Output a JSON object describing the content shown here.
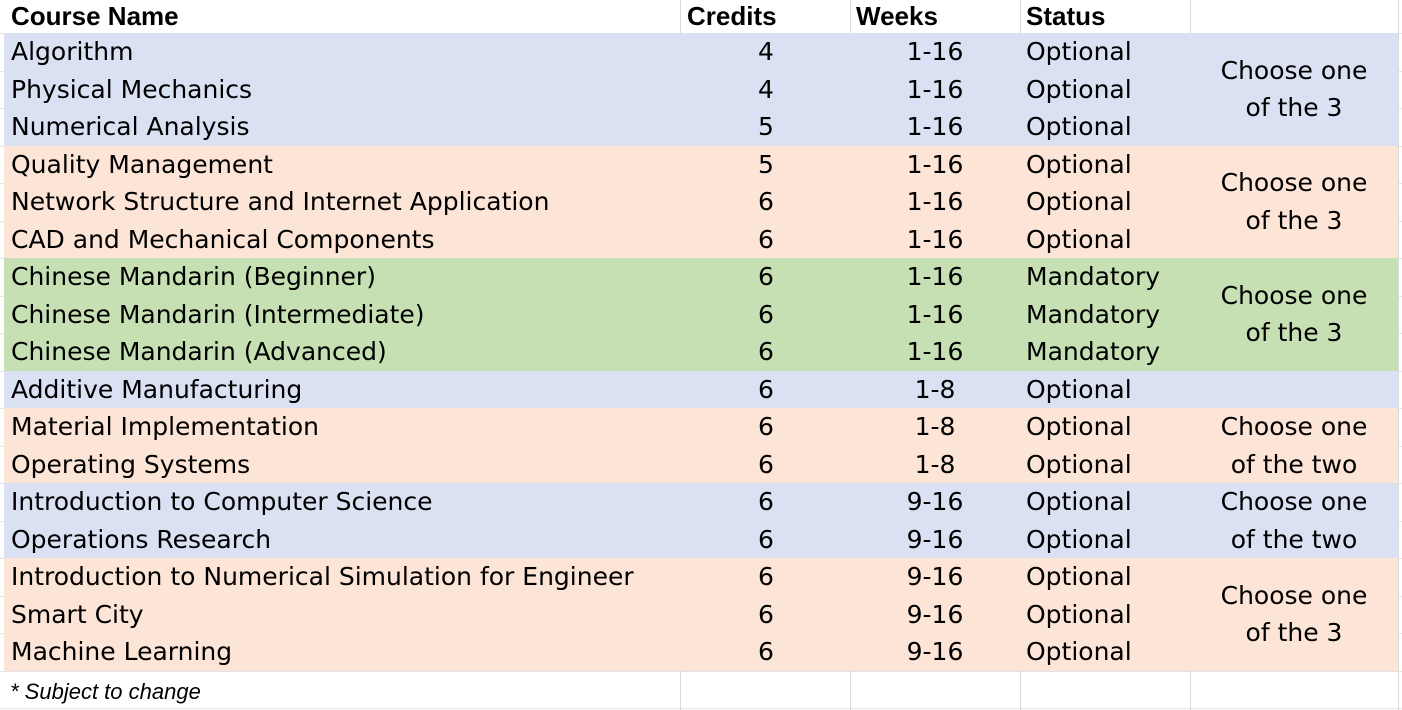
{
  "header": {
    "course_name": "Course Name",
    "credits": "Credits",
    "weeks": "Weeks",
    "status": "Status",
    "notes": ""
  },
  "colors": {
    "blue": "#d9e1f2",
    "orange": "#fce4d6",
    "green": "#c6e0b4"
  },
  "groups": [
    {
      "color": "blue",
      "note": [
        "Choose one",
        "of the 3"
      ],
      "rows": [
        {
          "name": "Algorithm",
          "credits": "4",
          "weeks": "1-16",
          "status": "Optional"
        },
        {
          "name": "Physical Mechanics",
          "credits": "4",
          "weeks": "1-16",
          "status": "Optional"
        },
        {
          "name": "Numerical Analysis",
          "credits": "5",
          "weeks": "1-16",
          "status": "Optional"
        }
      ]
    },
    {
      "color": "orange",
      "note": [
        "Choose one",
        "of the 3"
      ],
      "rows": [
        {
          "name": "Quality Management",
          "credits": "5",
          "weeks": "1-16",
          "status": "Optional"
        },
        {
          "name": "Network Structure and Internet Application",
          "credits": "6",
          "weeks": "1-16",
          "status": "Optional"
        },
        {
          "name": "CAD and Mechanical Components",
          "credits": "6",
          "weeks": "1-16",
          "status": "Optional"
        }
      ]
    },
    {
      "color": "green",
      "note": [
        "Choose one",
        "of the 3"
      ],
      "rows": [
        {
          "name": "Chinese Mandarin (Beginner)",
          "credits": "6",
          "weeks": "1-16",
          "status": "Mandatory"
        },
        {
          "name": "Chinese Mandarin (Intermediate)",
          "credits": "6",
          "weeks": "1-16",
          "status": "Mandatory"
        },
        {
          "name": "Chinese Mandarin (Advanced)",
          "credits": "6",
          "weeks": "1-16",
          "status": "Mandatory"
        }
      ]
    },
    {
      "color": "blue",
      "note": [],
      "rows": [
        {
          "name": "Additive Manufacturing",
          "credits": "6",
          "weeks": "1-8",
          "status": "Optional"
        }
      ]
    },
    {
      "color": "orange",
      "note": [
        "Choose one",
        "of the two"
      ],
      "rows": [
        {
          "name": "Material Implementation",
          "credits": "6",
          "weeks": "1-8",
          "status": "Optional"
        },
        {
          "name": "Operating Systems",
          "credits": "6",
          "weeks": "1-8",
          "status": "Optional"
        }
      ]
    },
    {
      "color": "blue",
      "note": [
        "Choose one",
        "of the two"
      ],
      "rows": [
        {
          "name": "Introduction to Computer Science",
          "credits": "6",
          "weeks": "9-16",
          "status": "Optional"
        },
        {
          "name": "Operations Research",
          "credits": "6",
          "weeks": "9-16",
          "status": "Optional"
        }
      ]
    },
    {
      "color": "orange",
      "note": [
        "Choose one",
        "of the 3"
      ],
      "rows": [
        {
          "name": "Introduction to Numerical Simulation for Engineer",
          "credits": "6",
          "weeks": "9-16",
          "status": "Optional"
        },
        {
          "name": "Smart City",
          "credits": "6",
          "weeks": "9-16",
          "status": "Optional"
        },
        {
          "name": "Machine Learning",
          "credits": "6",
          "weeks": "9-16",
          "status": "Optional"
        }
      ]
    }
  ],
  "footnote": "* Subject to change"
}
